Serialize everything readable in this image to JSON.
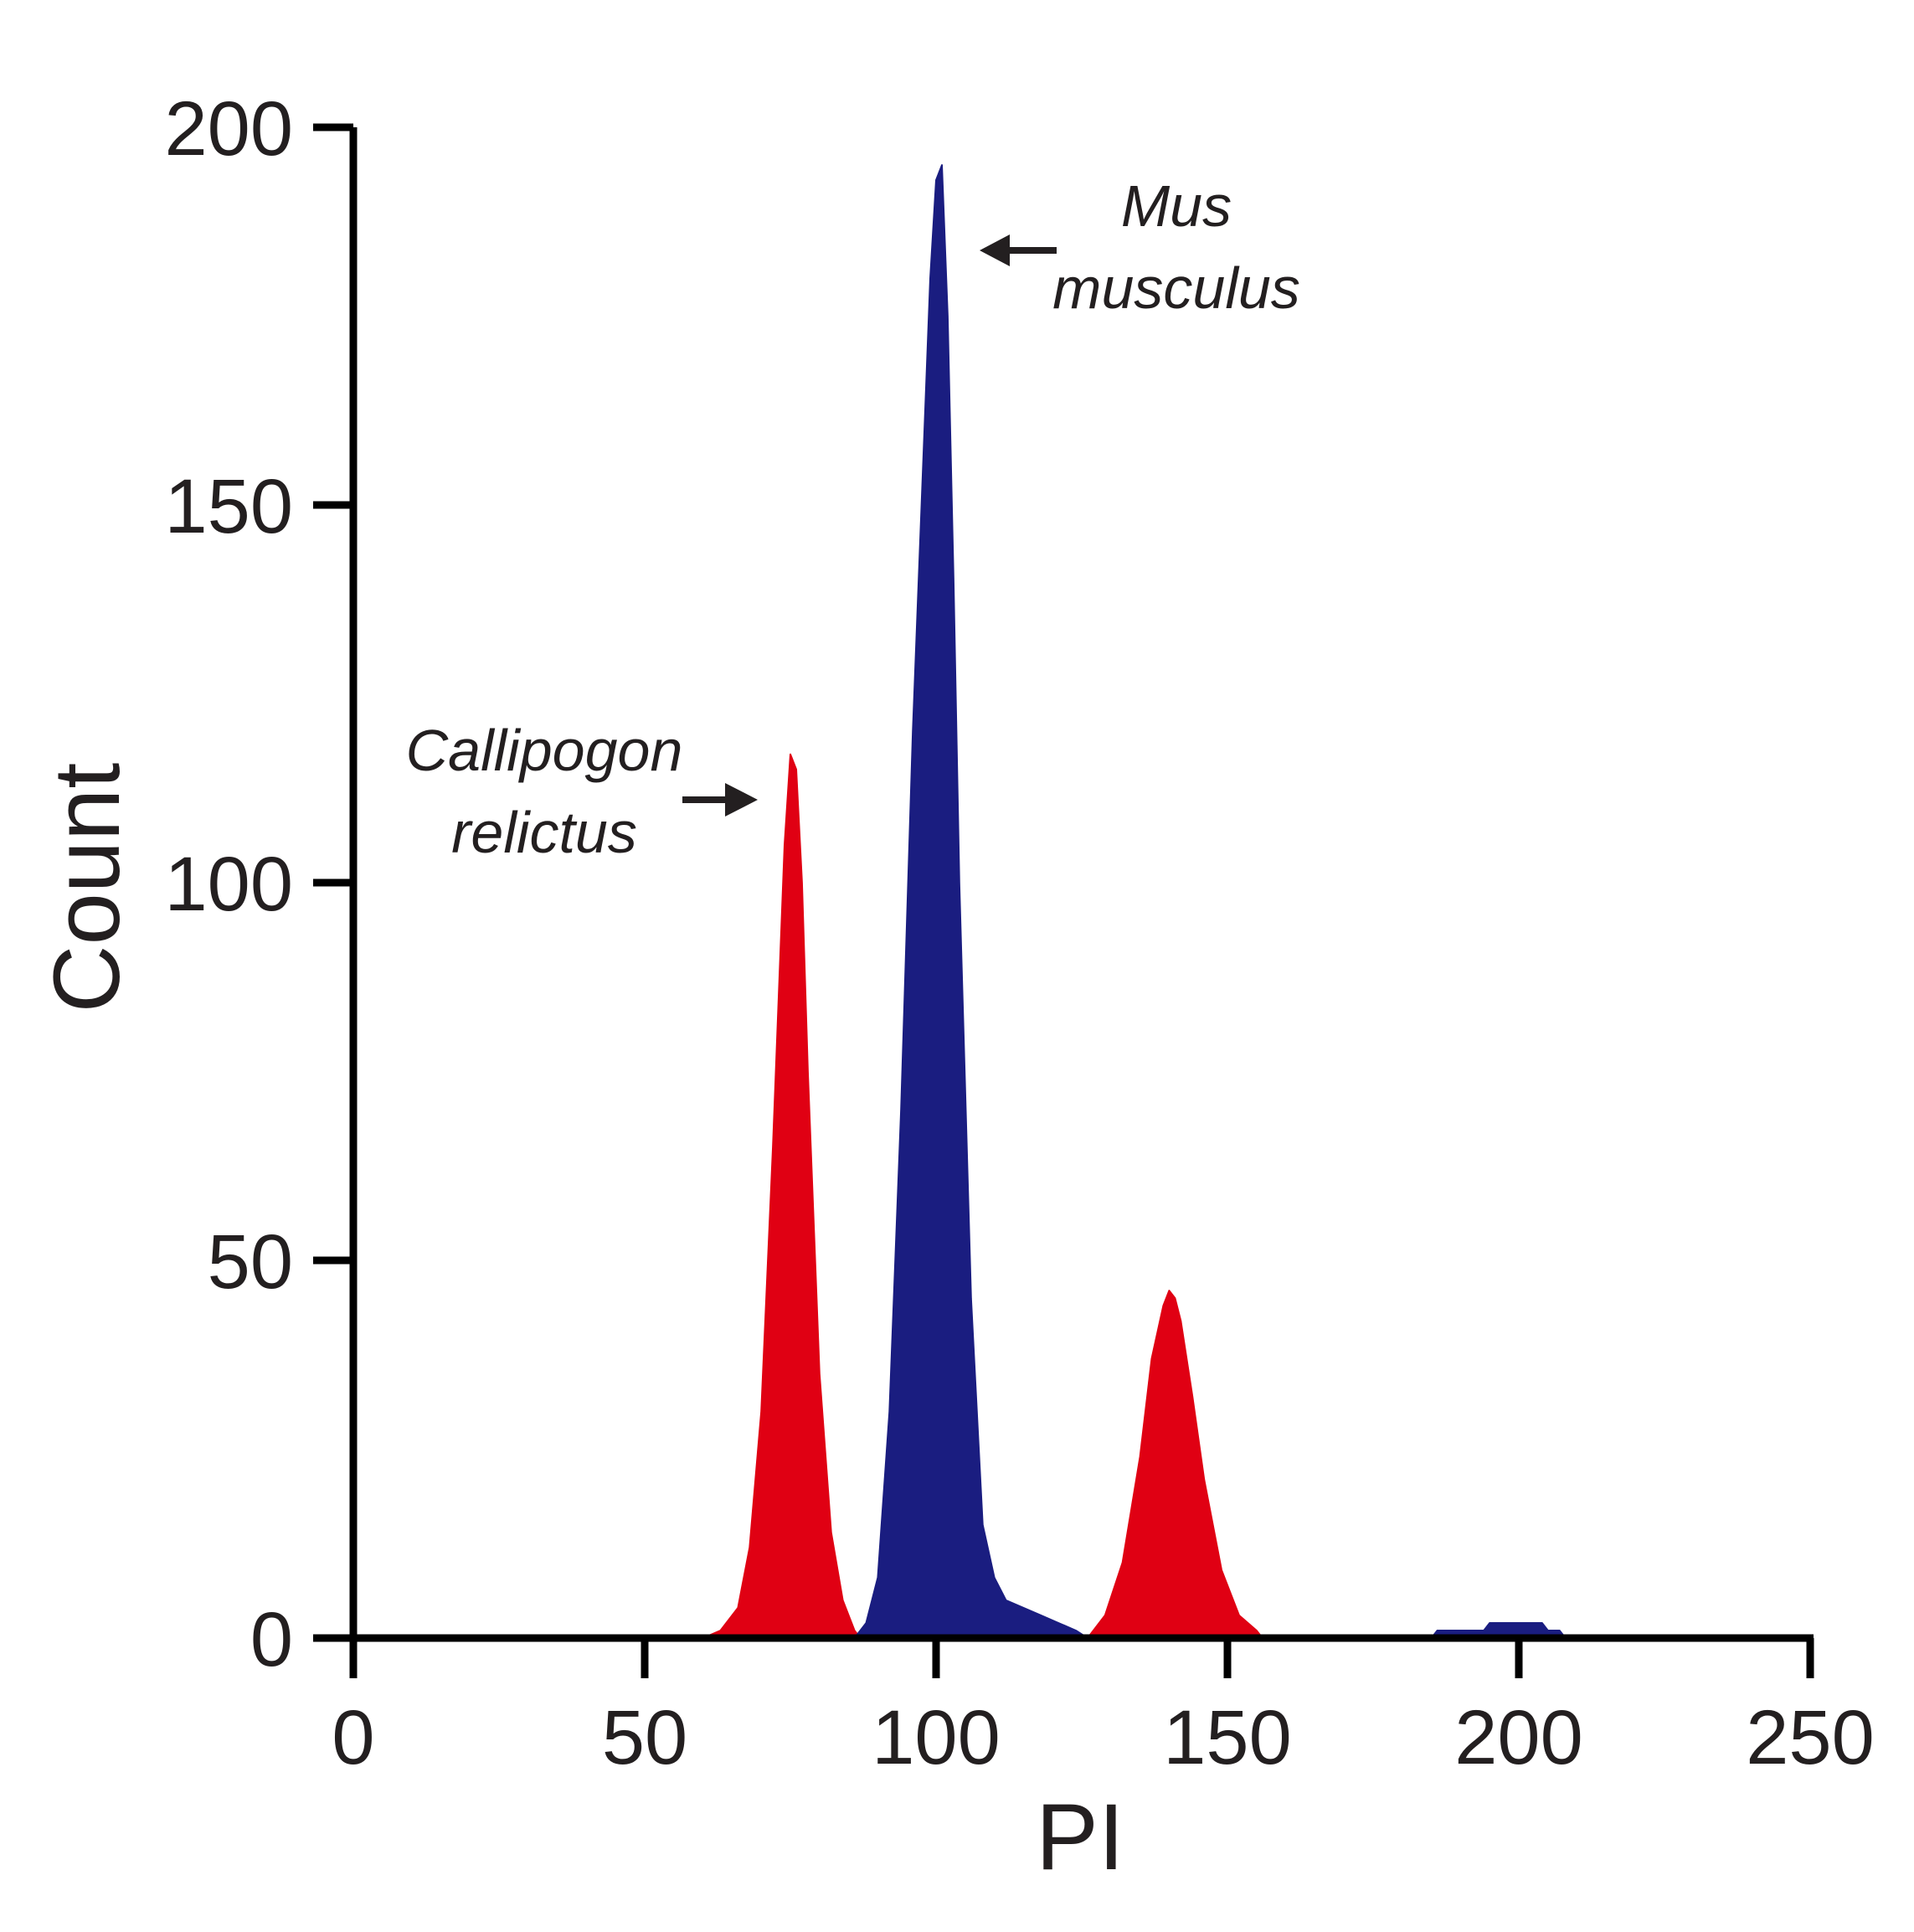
{
  "chart_data": {
    "type": "area",
    "title": "",
    "xlabel": "PI",
    "ylabel": "Count",
    "xlim": [
      0,
      250
    ],
    "ylim": [
      0,
      200
    ],
    "xticks": [
      0,
      50,
      100,
      150,
      200,
      250
    ],
    "yticks": [
      0,
      50,
      100,
      150,
      200
    ],
    "grid": false,
    "series": [
      {
        "name": "Callipogon relictus",
        "color": "#e00013",
        "x": [
          60,
          63,
          66,
          68,
          70,
          72,
          74,
          75,
          76,
          77,
          78,
          80,
          82,
          84,
          86,
          87,
          126,
          129,
          132,
          135,
          137,
          139,
          140,
          141,
          142,
          144,
          146,
          149,
          152,
          155,
          156
        ],
        "y": [
          0,
          1,
          4,
          12,
          30,
          65,
          105,
          117,
          115,
          100,
          75,
          35,
          14,
          5,
          1,
          0,
          0,
          3,
          10,
          24,
          37,
          44,
          46,
          45,
          42,
          32,
          21,
          9,
          3,
          1,
          0
        ]
      },
      {
        "name": "Mus musculus",
        "color": "#1a1d80",
        "x": [
          86,
          88,
          90,
          92,
          94,
          96,
          98,
          99,
          100,
          101,
          102,
          103,
          104,
          106,
          108,
          110,
          112,
          115,
          118,
          121,
          124,
          126,
          185,
          186,
          190,
          194,
          195,
          204,
          205,
          207,
          208
        ],
        "y": [
          0,
          2,
          8,
          30,
          70,
          120,
          160,
          180,
          193,
          195,
          175,
          140,
          100,
          45,
          15,
          8,
          5,
          4,
          3,
          2,
          1,
          0,
          0,
          1,
          1,
          1,
          2,
          2,
          1,
          1,
          0
        ]
      }
    ],
    "annotations": [
      {
        "text_line1": "Mus",
        "text_line2": "musculus",
        "arrow_direction": "left",
        "points_to": "Mus musculus peak"
      },
      {
        "text_line1": "Callipogon",
        "text_line2": "relictus",
        "arrow_direction": "right",
        "points_to": "Callipogon relictus peak"
      }
    ]
  }
}
